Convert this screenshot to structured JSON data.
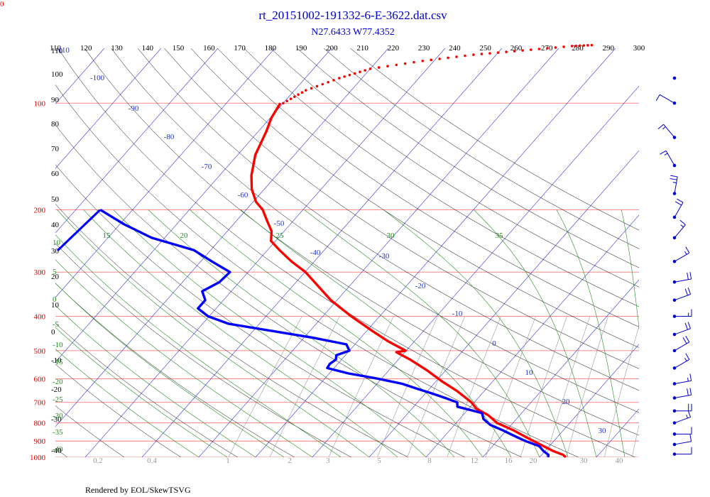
{
  "corner_label": "0",
  "footer": "Rendered by EOL/SkewTSVG",
  "chart_data": {
    "type": "skew-t log-p sounding",
    "title": "rt_20151002-191332-6-E-3622.dat.csv",
    "subtitle": "N27.6433 W77.4352",
    "pressure_levels": [
      100,
      200,
      300,
      400,
      500,
      600,
      700,
      800,
      900,
      1000
    ],
    "theta_labels": [
      110,
      120,
      130,
      140,
      150,
      160,
      170,
      180,
      190,
      200,
      210,
      220,
      230,
      240,
      250,
      260,
      270,
      280,
      290,
      300
    ],
    "left_height_labels": [
      110,
      100,
      90,
      80,
      70,
      60,
      50,
      40,
      30,
      20,
      10,
      0,
      -10,
      -20,
      -30,
      -40
    ],
    "isotherm_labels": [
      -110,
      -100,
      -90,
      -80,
      -70,
      -60,
      -50,
      -40,
      -30,
      -20,
      -10,
      0,
      10,
      20,
      30
    ],
    "moist_adiabat_labels": [
      15,
      20,
      25,
      30,
      35
    ],
    "moist_left_labels": [
      10,
      5,
      0,
      -5,
      -10,
      -15,
      -20,
      -25,
      -30,
      -35,
      -40
    ],
    "mixing_ratio_labels": [
      "0.2",
      "0.4",
      "1",
      "2",
      "3",
      "5",
      "8",
      "12",
      "16",
      "20",
      "30",
      "40"
    ],
    "colors": {
      "temperature": "#ff0000",
      "dewpoint": "#0000ff",
      "isobar": "#ff6666",
      "isotherm": "#3333dd",
      "dry_adiabat": "#000000",
      "moist_adiabat": "#228b22",
      "mixing_ratio": "#999999",
      "title": "#0000cc",
      "wind": "#0000cc"
    },
    "temperature": {
      "name": "",
      "points": [
        [
          100,
          -80.5
        ],
        [
          110,
          -79.8
        ],
        [
          120,
          -78.6
        ],
        [
          140,
          -76.9
        ],
        [
          160,
          -74.4
        ],
        [
          175,
          -72.2
        ],
        [
          190,
          -69.5
        ],
        [
          200,
          -67.1
        ],
        [
          215,
          -64.6
        ],
        [
          230,
          -62.2
        ],
        [
          245,
          -60.8
        ],
        [
          260,
          -57.9
        ],
        [
          280,
          -54.0
        ],
        [
          300,
          -49.9
        ],
        [
          330,
          -45.3
        ],
        [
          360,
          -41.1
        ],
        [
          400,
          -35.0
        ],
        [
          440,
          -29.0
        ],
        [
          470,
          -24.7
        ],
        [
          500,
          -20.1
        ],
        [
          505,
          -21.5
        ],
        [
          530,
          -17.9
        ],
        [
          570,
          -13.1
        ],
        [
          610,
          -9.0
        ],
        [
          650,
          -4.8
        ],
        [
          700,
          -0.5
        ],
        [
          730,
          1.4
        ],
        [
          760,
          4.4
        ],
        [
          800,
          7.2
        ],
        [
          840,
          11.3
        ],
        [
          880,
          14.7
        ],
        [
          920,
          18.1
        ],
        [
          960,
          21.4
        ],
        [
          985,
          23.8
        ],
        [
          1000,
          24.6
        ]
      ]
    },
    "temperature_upper": {
      "name": "",
      "points": [
        [
          100,
          -80.0
        ],
        [
          92,
          -78.0
        ],
        [
          85,
          -74.0
        ],
        [
          80,
          -70.0
        ],
        [
          76,
          -62.0
        ],
        [
          73,
          -54.0
        ],
        [
          71,
          -46.0
        ],
        [
          69,
          -38.0
        ],
        [
          68.5,
          -34.0
        ]
      ]
    },
    "dewpoint": {
      "name": "",
      "points": [
        [
          200,
          -95.7
        ],
        [
          220,
          -89.2
        ],
        [
          240,
          -82.3
        ],
        [
          260,
          -73.0
        ],
        [
          280,
          -68.0
        ],
        [
          300,
          -63.2
        ],
        [
          320,
          -63.5
        ],
        [
          340,
          -65.1
        ],
        [
          360,
          -63.2
        ],
        [
          380,
          -63.2
        ],
        [
          400,
          -60.2
        ],
        [
          420,
          -55.4
        ],
        [
          440,
          -46.6
        ],
        [
          460,
          -38.3
        ],
        [
          480,
          -31.5
        ],
        [
          500,
          -30.0
        ],
        [
          515,
          -31.6
        ],
        [
          530,
          -31.0
        ],
        [
          545,
          -31.4
        ],
        [
          560,
          -31.2
        ],
        [
          580,
          -26.6
        ],
        [
          600,
          -20.6
        ],
        [
          620,
          -15.6
        ],
        [
          640,
          -12.3
        ],
        [
          660,
          -8.9
        ],
        [
          680,
          -5.8
        ],
        [
          700,
          -3.0
        ],
        [
          720,
          -2.3
        ],
        [
          750,
          3.0
        ],
        [
          780,
          4.2
        ],
        [
          810,
          6.3
        ],
        [
          840,
          9.4
        ],
        [
          870,
          12.2
        ],
        [
          900,
          15.0
        ],
        [
          930,
          18.2
        ],
        [
          960,
          19.7
        ],
        [
          985,
          21.2
        ],
        [
          1000,
          21.5
        ]
      ]
    },
    "wind_barbs": [
      {
        "pressure": 85,
        "speed": 0,
        "direction": 0
      },
      {
        "pressure": 100,
        "speed": 10,
        "direction": 300
      },
      {
        "pressure": 125,
        "speed": 15,
        "direction": 320
      },
      {
        "pressure": 150,
        "speed": 15,
        "direction": 330
      },
      {
        "pressure": 180,
        "speed": 25,
        "direction": 10
      },
      {
        "pressure": 210,
        "speed": 20,
        "direction": 30
      },
      {
        "pressure": 240,
        "speed": 15,
        "direction": 40
      },
      {
        "pressure": 280,
        "speed": 15,
        "direction": 60
      },
      {
        "pressure": 320,
        "speed": 20,
        "direction": 80
      },
      {
        "pressure": 360,
        "speed": 20,
        "direction": 70
      },
      {
        "pressure": 400,
        "speed": 15,
        "direction": 90
      },
      {
        "pressure": 450,
        "speed": 20,
        "direction": 70
      },
      {
        "pressure": 500,
        "speed": 20,
        "direction": 60
      },
      {
        "pressure": 560,
        "speed": 15,
        "direction": 60
      },
      {
        "pressure": 620,
        "speed": 15,
        "direction": 80
      },
      {
        "pressure": 680,
        "speed": 20,
        "direction": 80
      },
      {
        "pressure": 740,
        "speed": 20,
        "direction": 90
      },
      {
        "pressure": 800,
        "speed": 15,
        "direction": 70
      },
      {
        "pressure": 860,
        "speed": 10,
        "direction": 90
      },
      {
        "pressure": 920,
        "speed": 10,
        "direction": 80
      },
      {
        "pressure": 980,
        "speed": 10,
        "direction": 90
      }
    ]
  }
}
